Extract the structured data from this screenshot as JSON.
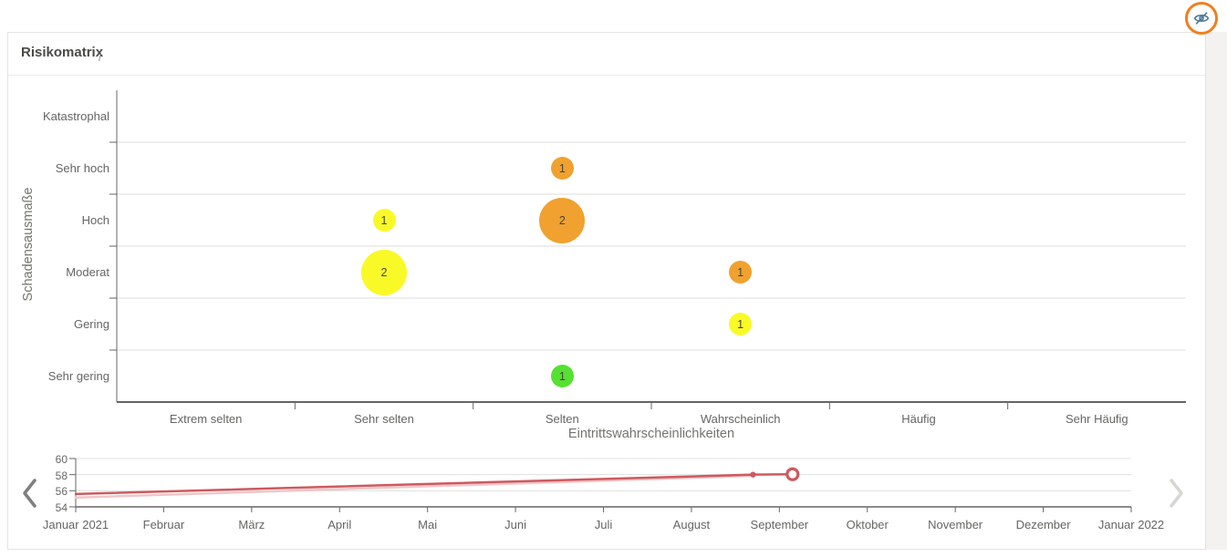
{
  "header": {
    "title": "Risikomatrix",
    "info_glyph": "i"
  },
  "colors": {
    "orange": "#f0a12f",
    "yellow": "#f9f928",
    "green": "#56e033",
    "red_line": "#cd5a5f",
    "light_red_line": "#f0c6c8",
    "icon_ring": "#f07f1f",
    "icon_glyph": "#4e7b99"
  },
  "chart_data": [
    {
      "type": "bubble",
      "title": "Risikomatrix",
      "xlabel": "Eintrittswahrscheinlichkeiten",
      "ylabel": "Schadensausmaße",
      "x_categories": [
        "Extrem selten",
        "Sehr selten",
        "Selten",
        "Wahrscheinlich",
        "Häufig",
        "Sehr Häufig"
      ],
      "y_categories": [
        "Katastrophal",
        "Sehr hoch",
        "Hoch",
        "Moderat",
        "Gering",
        "Sehr gering"
      ],
      "grid": "horizontal-only",
      "points": [
        {
          "x": "Selten",
          "y": "Sehr hoch",
          "count": 1,
          "color": "#f0a12f",
          "size": "small"
        },
        {
          "x": "Sehr selten",
          "y": "Hoch",
          "count": 1,
          "color": "#f9f928",
          "size": "small"
        },
        {
          "x": "Selten",
          "y": "Hoch",
          "count": 2,
          "color": "#f0a12f",
          "size": "large"
        },
        {
          "x": "Sehr selten",
          "y": "Moderat",
          "count": 2,
          "color": "#f9f928",
          "size": "large"
        },
        {
          "x": "Wahrscheinlich",
          "y": "Moderat",
          "count": 1,
          "color": "#f0a12f",
          "size": "small"
        },
        {
          "x": "Wahrscheinlich",
          "y": "Gering",
          "count": 1,
          "color": "#f9f928",
          "size": "small"
        },
        {
          "x": "Selten",
          "y": "Sehr gering",
          "count": 1,
          "color": "#56e033",
          "size": "small"
        }
      ]
    },
    {
      "type": "line",
      "x_tick_labels": [
        "Januar 2021",
        "Februar",
        "März",
        "April",
        "Mai",
        "Juni",
        "Juli",
        "August",
        "September",
        "Oktober",
        "November",
        "Dezember",
        "Januar 2022"
      ],
      "y_tick_labels": [
        "60",
        "58",
        "56",
        "54"
      ],
      "ylim": [
        54,
        60
      ],
      "legend": "none",
      "series": [
        {
          "name": "trend-light",
          "color": "#f0c6c8",
          "width": 2.5,
          "points": [
            {
              "t": 0,
              "v": 55.15
            },
            {
              "t": 7.7,
              "v": 57.85
            }
          ]
        },
        {
          "name": "trend",
          "color": "#cd5a5f",
          "width": 2.5,
          "points": [
            {
              "t": 0,
              "v": 55.6
            },
            {
              "t": 7.7,
              "v": 58.0
            },
            {
              "t": 8.15,
              "v": 58.05
            }
          ],
          "dot": {
            "t": 7.7,
            "v": 58.0
          },
          "end_marker": {
            "t": 8.15,
            "v": 58.05,
            "style": "open-circle"
          }
        }
      ],
      "note": "t = Monate nach Januar 2021"
    }
  ]
}
